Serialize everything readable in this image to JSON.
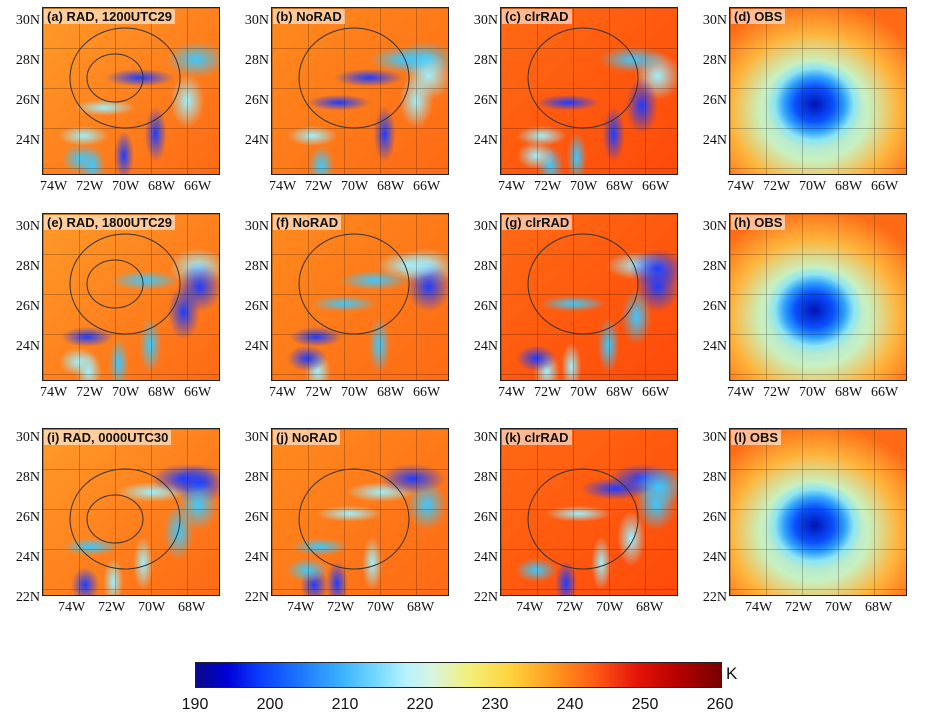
{
  "panels": [
    {
      "label": "(a) RAD, 1200UTC29",
      "type": "rad",
      "row": 0,
      "col": 0
    },
    {
      "label": "(b) NoRAD",
      "type": "norad",
      "row": 0,
      "col": 1
    },
    {
      "label": "(c) clrRAD",
      "type": "clr",
      "row": 0,
      "col": 2
    },
    {
      "label": "(d) OBS",
      "type": "obs",
      "row": 0,
      "col": 3
    },
    {
      "label": "(e) RAD, 1800UTC29",
      "type": "rad",
      "row": 1,
      "col": 0
    },
    {
      "label": "(f) NoRAD",
      "type": "norad",
      "row": 1,
      "col": 1
    },
    {
      "label": "(g) clrRAD",
      "type": "clr",
      "row": 1,
      "col": 2
    },
    {
      "label": "(h) OBS",
      "type": "obs",
      "row": 1,
      "col": 3
    },
    {
      "label": "(i) RAD, 0000UTC30",
      "type": "rad",
      "row": 2,
      "col": 0
    },
    {
      "label": "(j) NoRAD",
      "type": "norad",
      "row": 2,
      "col": 1
    },
    {
      "label": "(k) clrRAD",
      "type": "clr",
      "row": 2,
      "col": 2
    },
    {
      "label": "(l) OBS",
      "type": "obs",
      "row": 2,
      "col": 3
    }
  ],
  "axes": {
    "rows_0_1": {
      "y": [
        "30N",
        "28N",
        "26N",
        "24N"
      ],
      "x": [
        "74W",
        "72W",
        "70W",
        "68W",
        "66W"
      ]
    },
    "row_2": {
      "y": [
        "30N",
        "28N",
        "26N",
        "24N",
        "22N"
      ],
      "x": [
        "74W",
        "72W",
        "70W",
        "68W"
      ]
    }
  },
  "colorbar": {
    "ticks": [
      "190",
      "200",
      "210",
      "220",
      "230",
      "240",
      "250",
      "260"
    ],
    "unit": "K",
    "colors": [
      "#0a0a8a",
      "#0a3cff",
      "#3cb4ff",
      "#b6f2ff",
      "#f2f07a",
      "#ff9a1e",
      "#e6140a",
      "#780000"
    ]
  }
}
